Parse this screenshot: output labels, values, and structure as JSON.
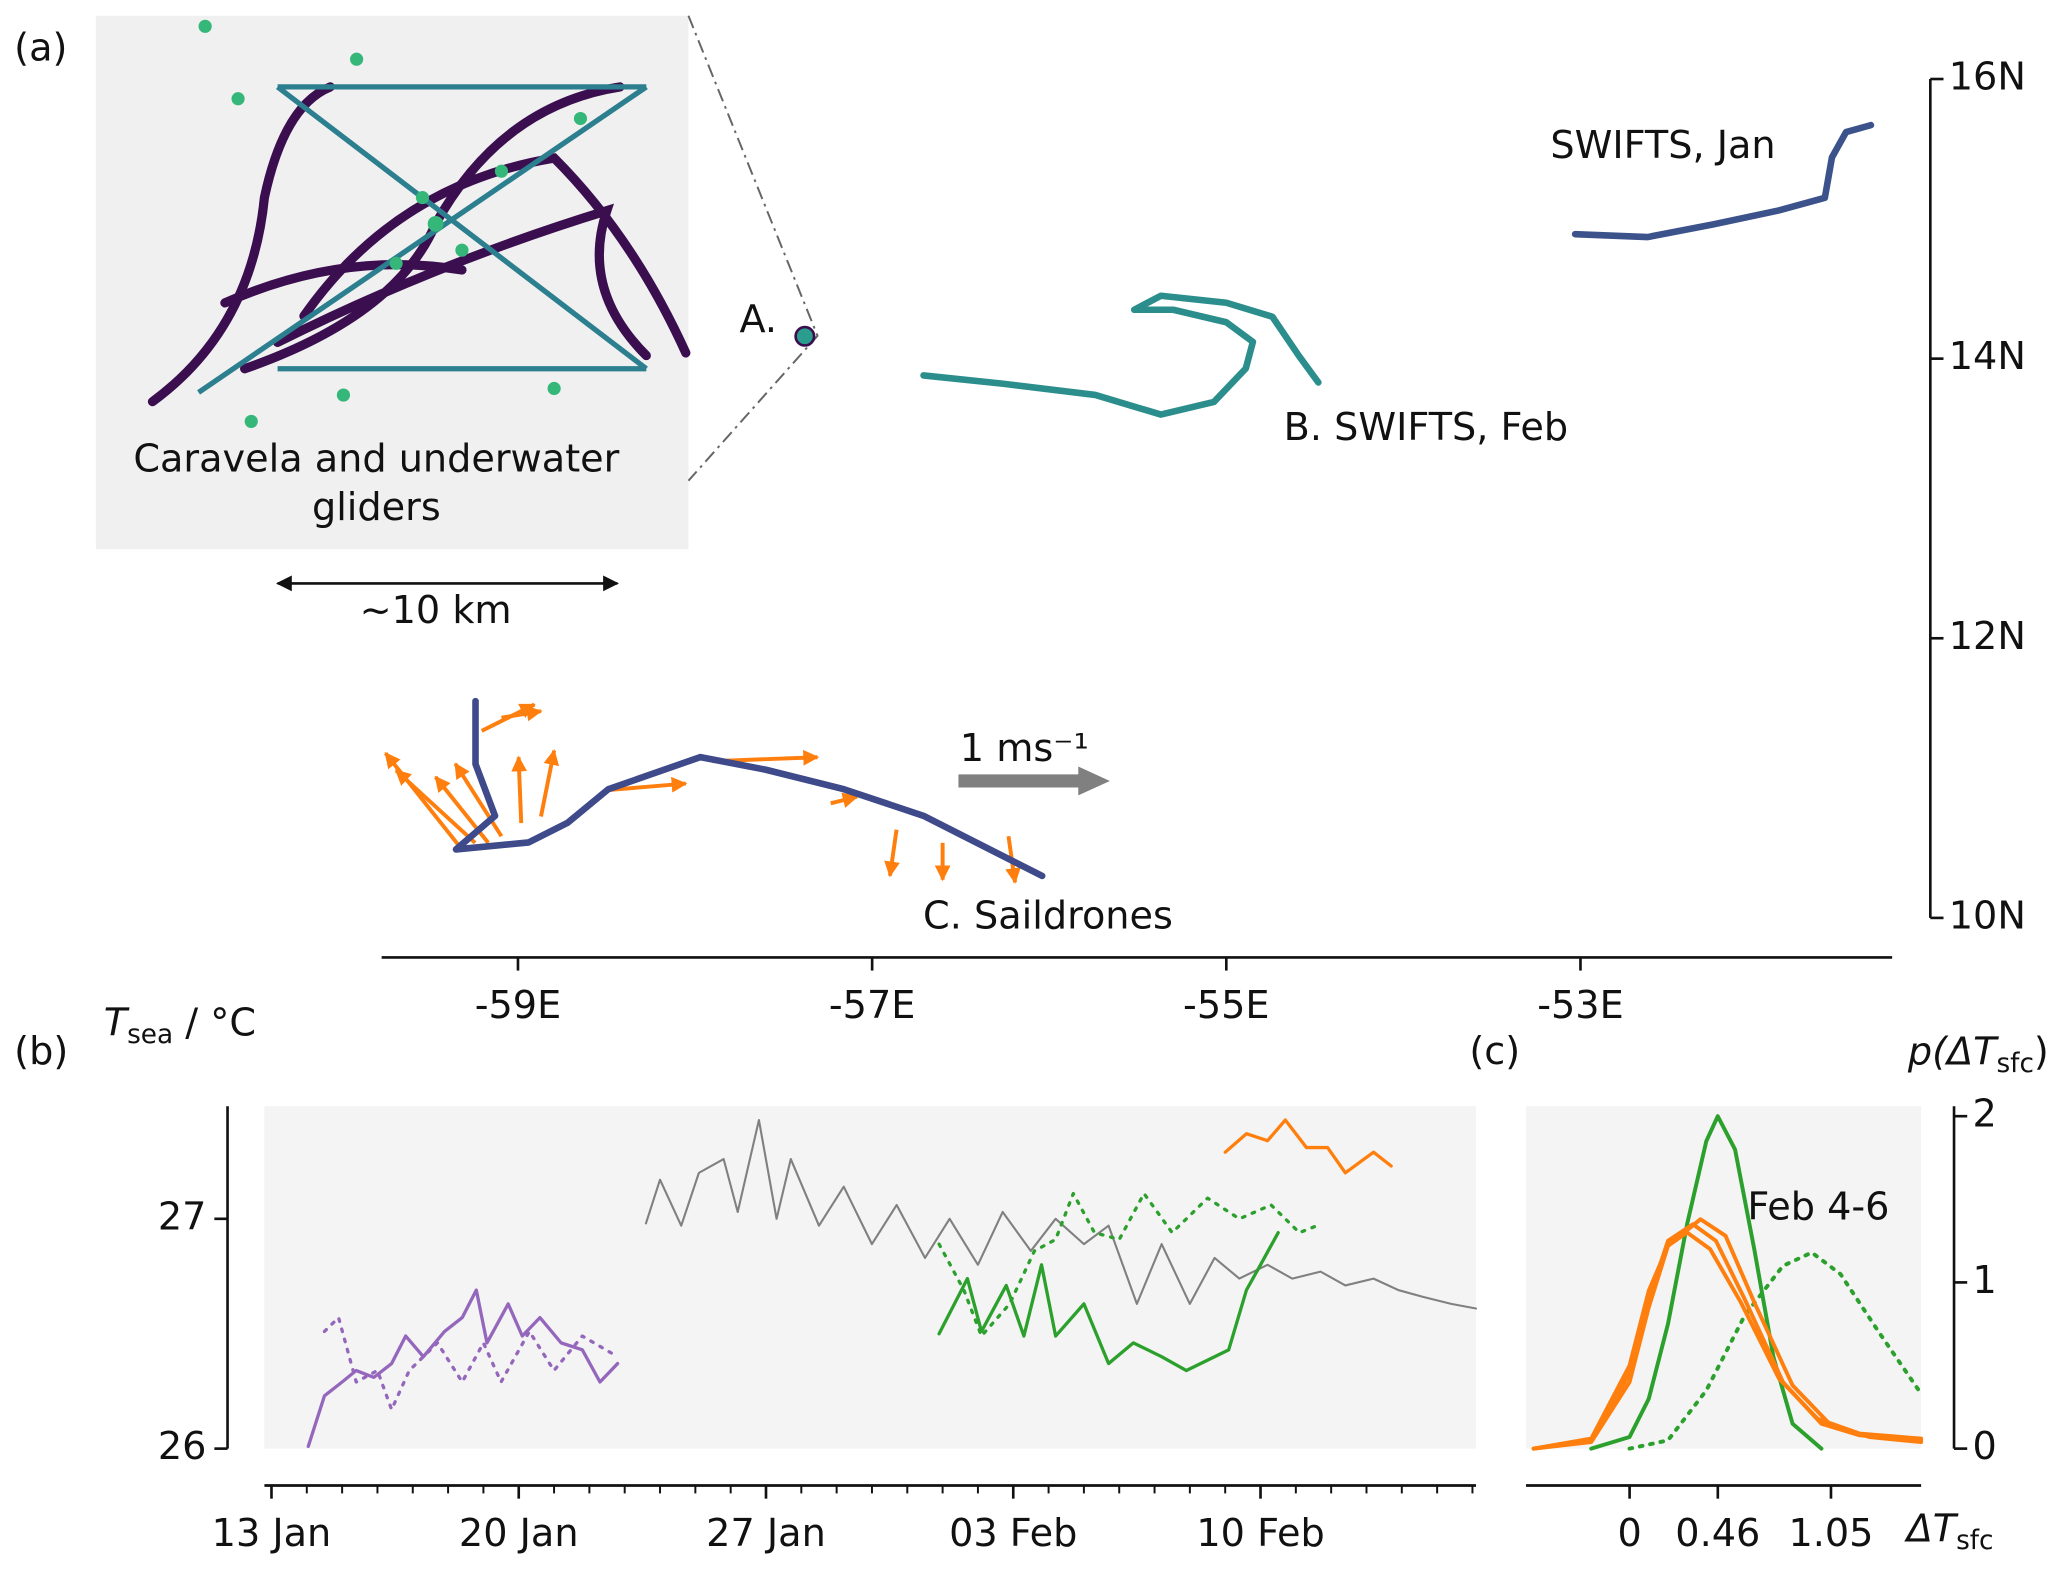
{
  "chart_data": [
    {
      "type": "line",
      "panel_label": "(a)",
      "xlim": [
        -59.77,
        -51.24
      ],
      "xticks": [
        {
          "value": -59,
          "label": "-59E"
        },
        {
          "value": -57,
          "label": "-57E"
        },
        {
          "value": -55,
          "label": "-55E"
        },
        {
          "value": -53,
          "label": "-53E"
        }
      ],
      "ylim": [
        10,
        16
      ],
      "yticks": [
        {
          "value": 10,
          "label": "10N"
        },
        {
          "value": 12,
          "label": "12N"
        },
        {
          "value": 14,
          "label": "14N"
        },
        {
          "value": 16,
          "label": "16N"
        }
      ],
      "series": [
        {
          "color": "#3b528b",
          "style": "solid",
          "x": [
            -53.03,
            -52.62,
            -52.25,
            -51.88,
            -51.62,
            -51.58,
            -51.5,
            -51.36
          ],
          "values": [
            14.89,
            14.87,
            14.96,
            15.06,
            15.15,
            15.44,
            15.62,
            15.67
          ]
        },
        {
          "color": "#2c8e8c",
          "style": "solid",
          "x": [
            -56.71,
            -56.26,
            -55.74,
            -55.37,
            -55.07,
            -54.89,
            -54.85,
            -55.0,
            -55.3,
            -55.52,
            -55.37,
            -55.0,
            -54.74,
            -54.59,
            -54.48
          ],
          "values": [
            13.88,
            13.82,
            13.74,
            13.6,
            13.69,
            13.93,
            14.12,
            14.26,
            14.35,
            14.35,
            14.45,
            14.4,
            14.3,
            14.02,
            13.83
          ]
        },
        {
          "color": "#3e4a89",
          "style": "solid",
          "x": [
            -59.24,
            -59.24,
            -59.13,
            -59.35,
            -58.94,
            -58.72,
            -58.49,
            -57.97,
            -57.6,
            -57.16,
            -56.71,
            -56.04
          ],
          "values": [
            11.55,
            11.1,
            10.73,
            10.49,
            10.54,
            10.68,
            10.92,
            11.15,
            11.06,
            10.92,
            10.73,
            10.3
          ]
        },
        {
          "color": "#2a9d8f",
          "style": "dots",
          "x": [
            -57.38
          ],
          "values": [
            14.16
          ]
        }
      ],
      "annotations": [
        {
          "text": "SWIFTS, Jan",
          "color": "#9467bd"
        },
        {
          "text": "B. SWIFTS, Feb",
          "color": "#2ca02c"
        },
        {
          "text": "C. Saildrones",
          "color": "#ff7f0e"
        },
        {
          "text": "A.",
          "color": "#808080"
        },
        {
          "text": "1 ms⁻¹",
          "color": "#808080"
        },
        {
          "text": "~10 km",
          "color": "#111111"
        },
        {
          "text": [
            "Caravela and underwater",
            "gliders"
          ],
          "color": "#808080"
        }
      ]
    },
    {
      "type": "line",
      "panel_label": "(b)",
      "ylabel": {
        "main": "T",
        "sub": "sea",
        "after": " / °C"
      },
      "xlim": [
        12.8,
        47.1
      ],
      "xticks": [
        {
          "value": 13,
          "label": "13 Jan"
        },
        {
          "value": 20,
          "label": "20 Jan"
        },
        {
          "value": 27,
          "label": "27 Jan"
        },
        {
          "value": 34,
          "label": "03 Feb"
        },
        {
          "value": 41,
          "label": "10 Feb"
        }
      ],
      "xminorticks": [
        14,
        15,
        16,
        17,
        18,
        19,
        21,
        22,
        23,
        24,
        25,
        26,
        28,
        29,
        30,
        31,
        32,
        33,
        35,
        36,
        37,
        38,
        39,
        40,
        42,
        43,
        44,
        45,
        46,
        47
      ],
      "ylim": [
        26,
        27.49
      ],
      "yticks": [
        26,
        27
      ],
      "series": [
        {
          "color": "#9467bd",
          "style": "solid",
          "x": [
            14.04,
            14.5,
            15.0,
            15.4,
            15.9,
            16.4,
            16.8,
            17.3,
            17.9,
            18.4,
            18.8,
            19.1,
            19.7,
            20.1,
            20.6,
            21.2,
            21.8,
            22.3,
            22.8
          ],
          "values": [
            26.01,
            26.23,
            26.29,
            26.34,
            26.31,
            26.37,
            26.49,
            26.4,
            26.51,
            26.57,
            26.69,
            26.46,
            26.63,
            26.49,
            26.57,
            26.46,
            26.43,
            26.29,
            26.37
          ]
        },
        {
          "color": "#9467bd",
          "style": "dotted",
          "x": [
            14.5,
            14.9,
            15.4,
            16.0,
            16.4,
            16.9,
            17.7,
            18.4,
            19.0,
            19.5,
            20.3,
            21.0,
            21.8,
            22.8
          ],
          "values": [
            26.51,
            26.57,
            26.29,
            26.34,
            26.17,
            26.34,
            26.46,
            26.29,
            26.46,
            26.29,
            26.51,
            26.34,
            26.49,
            26.4
          ]
        },
        {
          "color": "#808080",
          "style": "thin",
          "x": [
            23.6,
            24.0,
            24.6,
            25.1,
            25.8,
            26.2,
            26.8,
            27.3,
            27.7,
            28.5,
            29.2,
            30.0,
            30.7,
            31.5,
            32.2,
            33.0,
            33.7,
            34.5,
            35.2,
            36.0,
            36.7,
            37.5,
            38.2,
            39.0,
            39.7,
            40.4,
            41.2,
            41.9,
            42.7,
            43.4,
            44.2,
            44.9,
            45.6,
            46.4,
            47.1
          ],
          "values": [
            26.98,
            27.17,
            26.97,
            27.2,
            27.26,
            27.03,
            27.43,
            27.0,
            27.26,
            26.97,
            27.14,
            26.89,
            27.06,
            26.83,
            27.0,
            26.8,
            27.03,
            26.86,
            27.0,
            26.89,
            26.97,
            26.63,
            26.89,
            26.63,
            26.83,
            26.74,
            26.8,
            26.74,
            26.77,
            26.71,
            26.74,
            26.69,
            26.66,
            26.63,
            26.61
          ]
        },
        {
          "color": "#2ca02c",
          "style": "solid",
          "x": [
            31.9,
            32.7,
            33.1,
            33.8,
            34.3,
            34.8,
            35.2,
            36.0,
            36.7,
            37.4,
            38.2,
            38.9,
            40.1,
            40.6,
            41.0,
            41.5
          ],
          "values": [
            26.5,
            26.74,
            26.51,
            26.71,
            26.49,
            26.8,
            26.49,
            26.63,
            26.37,
            26.46,
            26.4,
            26.34,
            26.43,
            26.69,
            26.8,
            26.94
          ]
        },
        {
          "color": "#2ca02c",
          "style": "dotted",
          "x": [
            31.9,
            32.6,
            33.1,
            33.9,
            34.6,
            35.2,
            35.7,
            36.3,
            37.0,
            37.7,
            38.5,
            39.5,
            40.4,
            41.3,
            42.1,
            42.6
          ],
          "values": [
            26.89,
            26.69,
            26.49,
            26.63,
            26.86,
            26.91,
            27.11,
            26.94,
            26.91,
            27.11,
            26.94,
            27.09,
            27.0,
            27.06,
            26.94,
            26.97
          ]
        },
        {
          "color": "#ff7f0e",
          "style": "solid",
          "x": [
            40.0,
            40.6,
            41.2,
            41.7,
            42.3,
            42.9,
            43.4,
            44.2,
            44.7
          ],
          "values": [
            27.29,
            27.37,
            27.34,
            27.43,
            27.31,
            27.31,
            27.2,
            27.29,
            27.23
          ]
        }
      ]
    },
    {
      "type": "line",
      "panel_label": "(c)",
      "xlabel": {
        "main": "ΔT",
        "sub": "sfc"
      },
      "ylabel": {
        "main": "p(ΔT",
        "sub": "sfc",
        "after": ")"
      },
      "xlim": [
        -0.54,
        1.52
      ],
      "xticks": [
        0,
        0.46,
        1.05
      ],
      "ylim": [
        0,
        2.06
      ],
      "yticks": [
        0,
        1,
        2
      ],
      "series": [
        {
          "color": "#2ca02c",
          "style": "solid",
          "x": [
            -0.2,
            0,
            0.1,
            0.2,
            0.3,
            0.4,
            0.46,
            0.55,
            0.65,
            0.75,
            0.85,
            1.0
          ],
          "values": [
            0,
            0.07,
            0.3,
            0.75,
            1.35,
            1.85,
            2.0,
            1.8,
            1.2,
            0.55,
            0.15,
            0
          ]
        },
        {
          "color": "#2ca02c",
          "style": "dotted",
          "x": [
            0,
            0.2,
            0.4,
            0.6,
            0.8,
            0.95,
            1.1,
            1.3,
            1.52
          ],
          "values": [
            0,
            0.05,
            0.35,
            0.8,
            1.1,
            1.18,
            1.05,
            0.7,
            0.33
          ]
        },
        {
          "color": "#ff7f0e",
          "style": "solid",
          "x": [
            -0.5,
            -0.2,
            0,
            0.1,
            0.2,
            0.33,
            0.45,
            0.6,
            0.8,
            1.0,
            1.2,
            1.52
          ],
          "values": [
            0,
            0.05,
            0.45,
            0.9,
            1.25,
            1.35,
            1.25,
            0.9,
            0.4,
            0.15,
            0.08,
            0.05
          ]
        },
        {
          "color": "#ff7f0e",
          "style": "solid",
          "x": [
            -0.5,
            -0.2,
            0,
            0.1,
            0.2,
            0.37,
            0.5,
            0.65,
            0.85,
            1.05,
            1.25,
            1.52
          ],
          "values": [
            0,
            0.04,
            0.4,
            0.85,
            1.22,
            1.38,
            1.28,
            0.88,
            0.38,
            0.14,
            0.07,
            0.04
          ]
        },
        {
          "color": "#ff7f0e",
          "style": "solid",
          "x": [
            -0.5,
            -0.2,
            0,
            0.1,
            0.2,
            0.3,
            0.42,
            0.58,
            0.78,
            0.98,
            1.2,
            1.52
          ],
          "values": [
            0,
            0.06,
            0.5,
            0.95,
            1.22,
            1.3,
            1.2,
            0.88,
            0.42,
            0.18,
            0.09,
            0.06
          ]
        }
      ],
      "annotations": [
        {
          "text": "Feb 4-6",
          "color": "#2ca02c"
        }
      ]
    }
  ]
}
